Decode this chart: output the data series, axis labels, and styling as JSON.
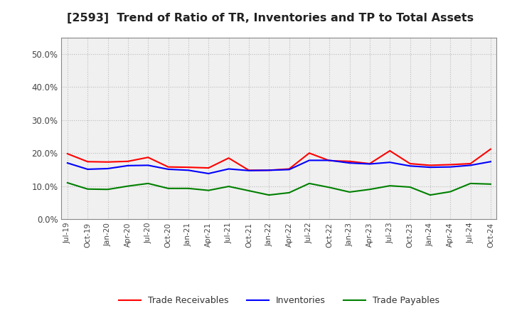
{
  "title": "[2593]  Trend of Ratio of TR, Inventories and TP to Total Assets",
  "title_fontsize": 11.5,
  "ylim": [
    0.0,
    0.55
  ],
  "yticks": [
    0.0,
    0.1,
    0.2,
    0.3,
    0.4,
    0.5
  ],
  "background_color": "#ffffff",
  "plot_bg_color": "#f0f0f0",
  "grid_color": "#bbbbbb",
  "labels": [
    "Jul-19",
    "Oct-19",
    "Jan-20",
    "Apr-20",
    "Jul-20",
    "Oct-20",
    "Jan-21",
    "Apr-21",
    "Jul-21",
    "Oct-21",
    "Jan-22",
    "Apr-22",
    "Jul-22",
    "Oct-22",
    "Jan-23",
    "Apr-23",
    "Jul-23",
    "Oct-23",
    "Jan-24",
    "Apr-24",
    "Jul-24",
    "Oct-24"
  ],
  "trade_receivables": [
    0.198,
    0.174,
    0.173,
    0.175,
    0.187,
    0.158,
    0.157,
    0.155,
    0.185,
    0.148,
    0.148,
    0.152,
    0.2,
    0.177,
    0.175,
    0.168,
    0.207,
    0.168,
    0.163,
    0.165,
    0.168,
    0.212
  ],
  "inventories": [
    0.17,
    0.151,
    0.153,
    0.162,
    0.163,
    0.151,
    0.148,
    0.138,
    0.152,
    0.147,
    0.148,
    0.15,
    0.178,
    0.178,
    0.17,
    0.167,
    0.172,
    0.161,
    0.157,
    0.158,
    0.163,
    0.174
  ],
  "trade_payables": [
    0.11,
    0.091,
    0.09,
    0.1,
    0.108,
    0.093,
    0.093,
    0.087,
    0.099,
    0.086,
    0.073,
    0.08,
    0.108,
    0.096,
    0.082,
    0.09,
    0.101,
    0.097,
    0.073,
    0.083,
    0.108,
    0.106
  ],
  "tr_color": "#ff0000",
  "inv_color": "#0000ff",
  "tp_color": "#008000",
  "line_width": 1.5,
  "legend_labels": [
    "Trade Receivables",
    "Inventories",
    "Trade Payables"
  ]
}
